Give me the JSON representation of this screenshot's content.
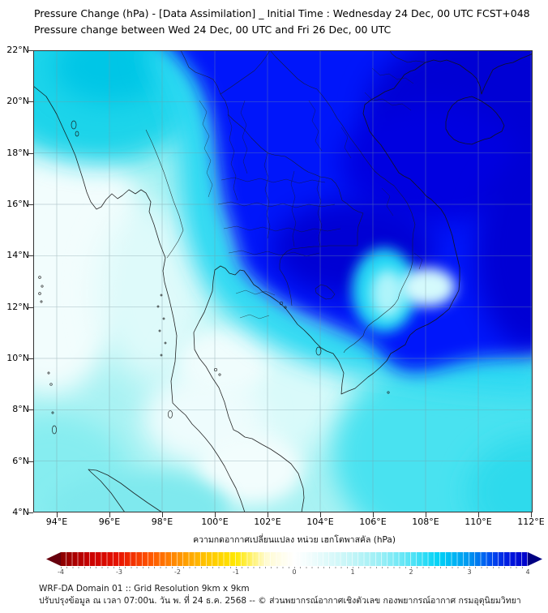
{
  "header": {
    "title_line1": "Pressure Change (hPa) - [Data Assimilation] _ Initial Time : Wednesday 24 Dec, 00 UTC FCST+048",
    "title_line2": "Pressure change between Wed 24 Dec, 00 UTC and Fri 26 Dec, 00 UTC"
  },
  "map": {
    "lat_labels": [
      "22°N",
      "20°N",
      "18°N",
      "16°N",
      "14°N",
      "12°N",
      "10°N",
      "8°N",
      "6°N",
      "4°N"
    ],
    "lon_labels": [
      "94°E",
      "96°E",
      "98°E",
      "100°E",
      "102°E",
      "104°E",
      "106°E",
      "108°E",
      "110°E",
      "112°E"
    ],
    "field_colors": {
      "strong_positive_navy": "#0000c8",
      "positive_blue": "#0018fa",
      "transition_cyan": "#29d8f2",
      "weak_positive_pale_cyan": "#a9f2f3",
      "near_zero_white": "#f4fefd"
    }
  },
  "colorbar": {
    "label": "ความกดอากาศเปลี่ยนแปลง หน่วย เฮกโตพาสคัล (hPa)",
    "ticks": [
      "-4",
      "-3",
      "-2",
      "-1",
      "0",
      "1",
      "2",
      "3",
      "4"
    ],
    "colors": {
      "neg_extreme": "#67000d",
      "neg4": "#8b0000",
      "neg2": "#ff9000",
      "neg1": "#ffe800",
      "zero": "#ffffff",
      "pos1": "#baf3f5",
      "pos2": "#55e4f6",
      "pos3": "#0064f0",
      "pos4": "#0000c8",
      "pos_extreme": "#000082"
    }
  },
  "footer": {
    "line1": "WRF-DA Domain 01 :: Grid Resolution 9km x 9km",
    "line2": "ปรับปรุงข้อมูล ณ เวลา 07:00น. วัน พ. ที่ 24 ธ.ค. 2568 -- © ส่วนพยากรณ์อากาศเชิงตัวเลข กองพยากรณ์อากาศ กรมอุตุนิยมวิทยา"
  }
}
